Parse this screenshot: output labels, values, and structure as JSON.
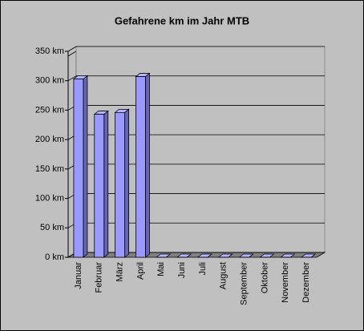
{
  "chart_data": {
    "type": "bar3d",
    "title": "Gefahrene km im Jahr MTB",
    "categories": [
      "Januar",
      "Februar",
      "März",
      "April",
      "Mai",
      "Juni",
      "Juli",
      "August",
      "September",
      "Oktober",
      "November",
      "Dezember"
    ],
    "values": [
      303,
      243,
      246,
      307,
      0,
      0,
      0,
      0,
      0,
      0,
      0,
      0
    ],
    "color": "#9999ff",
    "ylim": [
      0,
      350
    ],
    "yticks": [
      {
        "value": 0,
        "label": "0 km"
      },
      {
        "value": 50,
        "label": "50 km"
      },
      {
        "value": 100,
        "label": "100 km"
      },
      {
        "value": 150,
        "label": "150 km"
      },
      {
        "value": 200,
        "label": "200 km"
      },
      {
        "value": 250,
        "label": "250 km"
      },
      {
        "value": 300,
        "label": "300 km"
      },
      {
        "value": 350,
        "label": "350 km"
      }
    ],
    "grid": true
  }
}
